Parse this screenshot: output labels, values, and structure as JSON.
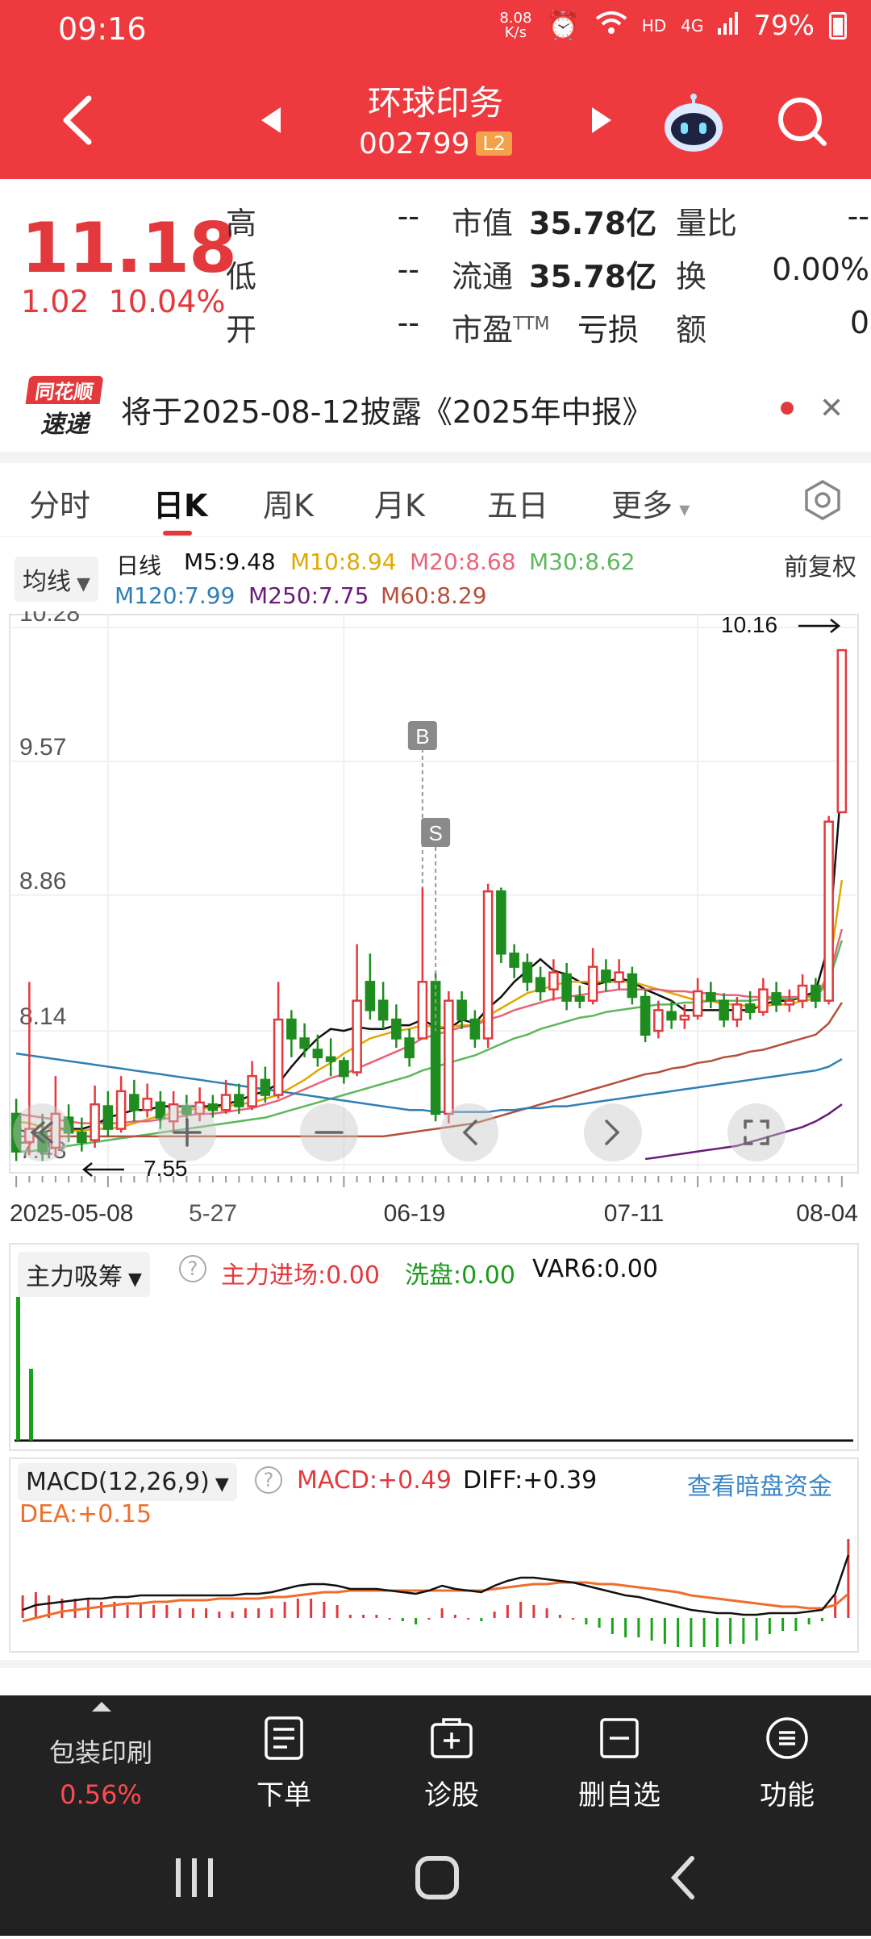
{
  "status": {
    "time": "09:16",
    "net_speed_value": "8.08",
    "net_speed_unit": "K/s",
    "hd": "HD",
    "signal": "4G",
    "battery": "79%"
  },
  "header": {
    "stock_name": "环球印务",
    "stock_code": "002799",
    "level_badge": "L2"
  },
  "quote": {
    "price": "11.18",
    "change": "1.02",
    "change_pct": "10.04%",
    "high_label": "高",
    "high": "--",
    "low_label": "低",
    "low": "--",
    "open_label": "开",
    "open": "--",
    "mktcap_label": "市值",
    "mktcap": "35.78亿",
    "float_label": "流通",
    "float": "35.78亿",
    "pe_label": "市盈",
    "pe_sup": "TTM",
    "pe": "亏损",
    "vol_ratio_label": "量比",
    "vol_ratio": "--",
    "turnover_label": "换",
    "turnover": "0.00%",
    "amount_label": "额",
    "amount": "0"
  },
  "news": {
    "logo_line1": "同花顺",
    "logo_line2": "速递",
    "text": "将于2025-08-12披露《2025年中报》"
  },
  "tabs": [
    "分时",
    "日K",
    "周K",
    "月K",
    "五日",
    "更多"
  ],
  "ma_legend": {
    "selector": "均线",
    "period": "日线",
    "adjust": "前复权",
    "items": [
      {
        "label": "M5:9.48",
        "color": "#111111"
      },
      {
        "label": "M10:8.94",
        "color": "#e0a800"
      },
      {
        "label": "M20:8.68",
        "color": "#e8647a"
      },
      {
        "label": "M30:8.62",
        "color": "#5cb85c"
      },
      {
        "label": "M120:7.99",
        "color": "#2f7fb5"
      },
      {
        "label": "M250:7.75",
        "color": "#6a1b7a"
      },
      {
        "label": "M60:8.29",
        "color": "#b5503a"
      }
    ]
  },
  "chart_data": {
    "type": "candlestick",
    "y_ticks": [
      "10.28",
      "9.57",
      "8.86",
      "8.14",
      "7.43"
    ],
    "ylim": [
      7.43,
      10.28
    ],
    "max_label": "10.16",
    "min_label": "7.55",
    "x_labels": [
      "2025-05-08",
      "5-27",
      "06-19",
      "07-11",
      "08-04"
    ],
    "markers": [
      {
        "label": "B"
      },
      {
        "label": "S"
      }
    ],
    "candles": [
      [
        7.7,
        7.5,
        7.78,
        7.45
      ],
      [
        7.55,
        7.62,
        8.4,
        7.48
      ],
      [
        7.6,
        7.5,
        7.7,
        7.45
      ],
      [
        7.52,
        7.7,
        7.9,
        7.48
      ],
      [
        7.68,
        7.6,
        7.75,
        7.55
      ],
      [
        7.6,
        7.55,
        7.68,
        7.5
      ],
      [
        7.56,
        7.75,
        7.85,
        7.52
      ],
      [
        7.74,
        7.62,
        7.82,
        7.58
      ],
      [
        7.62,
        7.82,
        7.9,
        7.6
      ],
      [
        7.8,
        7.72,
        7.88,
        7.66
      ],
      [
        7.72,
        7.78,
        7.86,
        7.68
      ],
      [
        7.76,
        7.68,
        7.82,
        7.62
      ],
      [
        7.66,
        7.75,
        7.82,
        7.6
      ],
      [
        7.74,
        7.7,
        7.8,
        7.65
      ],
      [
        7.7,
        7.76,
        7.84,
        7.66
      ],
      [
        7.75,
        7.72,
        7.8,
        7.68
      ],
      [
        7.72,
        7.8,
        7.88,
        7.7
      ],
      [
        7.8,
        7.74,
        7.86,
        7.7
      ],
      [
        7.74,
        7.9,
        7.98,
        7.72
      ],
      [
        7.88,
        7.8,
        7.95,
        7.76
      ],
      [
        7.8,
        8.2,
        8.4,
        7.78
      ],
      [
        8.2,
        8.1,
        8.25,
        8.0
      ],
      [
        8.1,
        8.05,
        8.18,
        8.0
      ],
      [
        8.04,
        8.0,
        8.12,
        7.95
      ],
      [
        8.0,
        7.98,
        8.1,
        7.9
      ],
      [
        7.98,
        7.9,
        8.0,
        7.86
      ],
      [
        7.92,
        8.3,
        8.6,
        7.9
      ],
      [
        8.4,
        8.25,
        8.55,
        8.2
      ],
      [
        8.3,
        8.2,
        8.4,
        8.15
      ],
      [
        8.2,
        8.1,
        8.28,
        8.05
      ],
      [
        8.1,
        8.0,
        8.15,
        7.95
      ],
      [
        8.1,
        8.4,
        8.9,
        8.1
      ],
      [
        8.4,
        7.7,
        8.45,
        7.66
      ],
      [
        7.7,
        8.3,
        8.35,
        7.65
      ],
      [
        8.3,
        8.2,
        8.35,
        8.15
      ],
      [
        8.2,
        8.1,
        8.25,
        8.05
      ],
      [
        8.1,
        8.88,
        8.92,
        8.05
      ],
      [
        8.88,
        8.55,
        8.9,
        8.5
      ],
      [
        8.55,
        8.48,
        8.6,
        8.42
      ],
      [
        8.5,
        8.4,
        8.55,
        8.35
      ],
      [
        8.42,
        8.35,
        8.48,
        8.3
      ],
      [
        8.36,
        8.45,
        8.52,
        8.3
      ],
      [
        8.44,
        8.3,
        8.5,
        8.25
      ],
      [
        8.32,
        8.3,
        8.38,
        8.26
      ],
      [
        8.3,
        8.48,
        8.58,
        8.28
      ],
      [
        8.46,
        8.4,
        8.52,
        8.35
      ],
      [
        8.4,
        8.45,
        8.52,
        8.36
      ],
      [
        8.44,
        8.32,
        8.48,
        8.28
      ],
      [
        8.32,
        8.12,
        8.36,
        8.08
      ],
      [
        8.14,
        8.25,
        8.3,
        8.1
      ],
      [
        8.24,
        8.2,
        8.3,
        8.15
      ],
      [
        8.2,
        8.22,
        8.28,
        8.15
      ],
      [
        8.22,
        8.35,
        8.42,
        8.2
      ],
      [
        8.34,
        8.3,
        8.4,
        8.26
      ],
      [
        8.3,
        8.2,
        8.34,
        8.16
      ],
      [
        8.2,
        8.28,
        8.32,
        8.16
      ],
      [
        8.28,
        8.24,
        8.35,
        8.2
      ],
      [
        8.24,
        8.36,
        8.42,
        8.22
      ],
      [
        8.34,
        8.28,
        8.4,
        8.24
      ],
      [
        8.28,
        8.3,
        8.36,
        8.24
      ],
      [
        8.3,
        8.38,
        8.44,
        8.26
      ],
      [
        8.38,
        8.3,
        8.42,
        8.26
      ],
      [
        8.3,
        9.25,
        9.28,
        8.28
      ],
      [
        9.3,
        10.16,
        10.16,
        9.3
      ]
    ],
    "ma_series": [
      {
        "name": "M5",
        "color": "#111111",
        "values": [
          7.62,
          7.6,
          7.6,
          7.62,
          7.62,
          7.62,
          7.64,
          7.68,
          7.7,
          7.72,
          7.72,
          7.74,
          7.74,
          7.74,
          7.74,
          7.74,
          7.75,
          7.77,
          7.8,
          7.82,
          7.86,
          7.95,
          8.03,
          8.1,
          8.15,
          8.14,
          8.16,
          8.15,
          8.15,
          8.17,
          8.17,
          8.2,
          8.16,
          8.15,
          8.2,
          8.18,
          8.26,
          8.32,
          8.4,
          8.46,
          8.52,
          8.46,
          8.44,
          8.4,
          8.38,
          8.4,
          8.42,
          8.4,
          8.36,
          8.33,
          8.3,
          8.25,
          8.25,
          8.25,
          8.25,
          8.25,
          8.25,
          8.28,
          8.3,
          8.3,
          8.32,
          8.35,
          8.6,
          9.48
        ]
      },
      {
        "name": "M10",
        "color": "#e0a800",
        "values": [
          7.66,
          7.65,
          7.63,
          7.62,
          7.61,
          7.61,
          7.62,
          7.62,
          7.63,
          7.65,
          7.67,
          7.69,
          7.7,
          7.72,
          7.73,
          7.73,
          7.74,
          7.75,
          7.76,
          7.78,
          7.8,
          7.84,
          7.88,
          7.93,
          7.97,
          8.02,
          8.06,
          8.1,
          8.12,
          8.14,
          8.15,
          8.17,
          8.16,
          8.16,
          8.17,
          8.17,
          8.22,
          8.26,
          8.3,
          8.34,
          8.36,
          8.38,
          8.4,
          8.4,
          8.4,
          8.4,
          8.4,
          8.4,
          8.38,
          8.36,
          8.34,
          8.32,
          8.3,
          8.3,
          8.28,
          8.28,
          8.27,
          8.27,
          8.28,
          8.28,
          8.3,
          8.31,
          8.45,
          8.94
        ]
      },
      {
        "name": "M20",
        "color": "#e8647a",
        "values": [
          7.7,
          7.69,
          7.68,
          7.67,
          7.66,
          7.65,
          7.65,
          7.65,
          7.65,
          7.66,
          7.66,
          7.67,
          7.68,
          7.69,
          7.7,
          7.7,
          7.71,
          7.72,
          7.73,
          7.75,
          7.77,
          7.8,
          7.83,
          7.86,
          7.89,
          7.91,
          7.94,
          7.97,
          8.0,
          8.03,
          8.06,
          8.1,
          8.12,
          8.14,
          8.16,
          8.17,
          8.2,
          8.22,
          8.25,
          8.27,
          8.29,
          8.31,
          8.32,
          8.33,
          8.34,
          8.35,
          8.36,
          8.36,
          8.36,
          8.36,
          8.35,
          8.35,
          8.34,
          8.34,
          8.33,
          8.33,
          8.32,
          8.32,
          8.32,
          8.32,
          8.32,
          8.33,
          8.42,
          8.68
        ]
      },
      {
        "name": "M30",
        "color": "#5cb85c",
        "values": [
          7.5,
          7.5,
          7.51,
          7.52,
          7.53,
          7.54,
          7.55,
          7.56,
          7.57,
          7.58,
          7.59,
          7.6,
          7.61,
          7.62,
          7.63,
          7.64,
          7.65,
          7.66,
          7.67,
          7.68,
          7.7,
          7.72,
          7.74,
          7.76,
          7.78,
          7.8,
          7.82,
          7.84,
          7.86,
          7.88,
          7.9,
          7.93,
          7.95,
          7.97,
          7.99,
          8.01,
          8.04,
          8.07,
          8.1,
          8.12,
          8.15,
          8.17,
          8.19,
          8.21,
          8.22,
          8.24,
          8.25,
          8.26,
          8.27,
          8.28,
          8.28,
          8.29,
          8.29,
          8.3,
          8.3,
          8.3,
          8.3,
          8.31,
          8.31,
          8.31,
          8.32,
          8.32,
          8.4,
          8.62
        ]
      },
      {
        "name": "M60",
        "color": "#b5503a",
        "values": [
          7.58,
          7.58,
          7.58,
          7.58,
          7.58,
          7.58,
          7.58,
          7.58,
          7.58,
          7.58,
          7.58,
          7.58,
          7.58,
          7.58,
          7.58,
          7.58,
          7.58,
          7.58,
          7.58,
          7.58,
          7.58,
          7.58,
          7.58,
          7.58,
          7.58,
          7.58,
          7.58,
          7.58,
          7.58,
          7.59,
          7.6,
          7.61,
          7.62,
          7.63,
          7.64,
          7.65,
          7.67,
          7.69,
          7.71,
          7.73,
          7.75,
          7.77,
          7.79,
          7.81,
          7.83,
          7.85,
          7.87,
          7.89,
          7.91,
          7.92,
          7.94,
          7.95,
          7.97,
          7.98,
          8.0,
          8.01,
          8.03,
          8.04,
          8.06,
          8.08,
          8.1,
          8.12,
          8.18,
          8.29
        ]
      },
      {
        "name": "M120",
        "color": "#2f7fb5",
        "values": [
          8.02,
          8.01,
          8.0,
          7.99,
          7.98,
          7.97,
          7.96,
          7.95,
          7.94,
          7.93,
          7.92,
          7.91,
          7.9,
          7.89,
          7.88,
          7.87,
          7.86,
          7.85,
          7.84,
          7.83,
          7.82,
          7.81,
          7.8,
          7.79,
          7.78,
          7.77,
          7.76,
          7.75,
          7.74,
          7.73,
          7.72,
          7.72,
          7.71,
          7.71,
          7.71,
          7.71,
          7.71,
          7.72,
          7.72,
          7.73,
          7.73,
          7.74,
          7.74,
          7.75,
          7.76,
          7.77,
          7.78,
          7.79,
          7.8,
          7.81,
          7.82,
          7.83,
          7.84,
          7.85,
          7.86,
          7.87,
          7.88,
          7.89,
          7.9,
          7.91,
          7.92,
          7.93,
          7.95,
          7.99
        ]
      },
      {
        "name": "M250",
        "color": "#6a1b7a",
        "values": [
          null,
          null,
          null,
          null,
          null,
          null,
          null,
          null,
          null,
          null,
          null,
          null,
          null,
          null,
          null,
          null,
          null,
          null,
          null,
          null,
          null,
          null,
          null,
          null,
          null,
          null,
          null,
          null,
          null,
          null,
          null,
          null,
          null,
          null,
          null,
          null,
          null,
          null,
          null,
          null,
          null,
          null,
          null,
          null,
          null,
          null,
          null,
          null,
          7.46,
          7.47,
          7.48,
          7.49,
          7.5,
          7.51,
          7.52,
          7.53,
          7.55,
          7.57,
          7.59,
          7.61,
          7.63,
          7.66,
          7.7,
          7.75
        ]
      }
    ]
  },
  "nav_controls": [
    "rewind",
    "zoom-in",
    "zoom-out",
    "prev",
    "next",
    "fullscreen"
  ],
  "sub1": {
    "selector": "主力吸筹",
    "item1": "主力进场:0.00",
    "item2": "洗盘:0.00",
    "item3": "VAR6:0.00",
    "bars": [
      1.0,
      0.5
    ]
  },
  "sub2": {
    "selector": "MACD(12,26,9)",
    "macd": "MACD:+0.49",
    "diff": "DIFF:+0.39",
    "dea": "DEA:+0.15",
    "link": "查看暗盘资金",
    "diff_values": [
      0.05,
      0.08,
      0.09,
      0.1,
      0.11,
      0.12,
      0.12,
      0.13,
      0.13,
      0.14,
      0.14,
      0.14,
      0.14,
      0.14,
      0.14,
      0.14,
      0.14,
      0.15,
      0.15,
      0.16,
      0.18,
      0.2,
      0.21,
      0.21,
      0.2,
      0.18,
      0.18,
      0.18,
      0.17,
      0.16,
      0.15,
      0.17,
      0.2,
      0.18,
      0.17,
      0.16,
      0.2,
      0.23,
      0.25,
      0.25,
      0.24,
      0.23,
      0.22,
      0.2,
      0.18,
      0.16,
      0.14,
      0.13,
      0.11,
      0.09,
      0.07,
      0.05,
      0.04,
      0.03,
      0.03,
      0.02,
      0.02,
      0.03,
      0.03,
      0.03,
      0.04,
      0.05,
      0.15,
      0.39
    ],
    "dea_values": [
      -0.02,
      0.0,
      0.02,
      0.04,
      0.05,
      0.06,
      0.07,
      0.08,
      0.09,
      0.09,
      0.1,
      0.1,
      0.11,
      0.11,
      0.11,
      0.12,
      0.12,
      0.12,
      0.12,
      0.13,
      0.13,
      0.14,
      0.15,
      0.16,
      0.16,
      0.17,
      0.17,
      0.17,
      0.17,
      0.17,
      0.17,
      0.17,
      0.17,
      0.17,
      0.17,
      0.17,
      0.18,
      0.19,
      0.2,
      0.21,
      0.21,
      0.22,
      0.22,
      0.22,
      0.21,
      0.21,
      0.2,
      0.19,
      0.18,
      0.17,
      0.16,
      0.14,
      0.13,
      0.12,
      0.11,
      0.1,
      0.09,
      0.08,
      0.07,
      0.07,
      0.06,
      0.06,
      0.08,
      0.15
    ],
    "macd_bars": [
      0.14,
      0.16,
      0.14,
      0.12,
      0.12,
      0.12,
      0.1,
      0.1,
      0.08,
      0.09,
      0.08,
      0.08,
      0.06,
      0.06,
      0.06,
      0.04,
      0.04,
      0.06,
      0.06,
      0.06,
      0.1,
      0.12,
      0.12,
      0.1,
      0.08,
      0.02,
      0.02,
      0.02,
      0.0,
      -0.02,
      -0.04,
      0.0,
      0.06,
      0.02,
      0.0,
      -0.02,
      0.04,
      0.08,
      0.1,
      0.08,
      0.06,
      0.02,
      0.0,
      -0.04,
      -0.06,
      -0.1,
      -0.12,
      -0.12,
      -0.14,
      -0.16,
      -0.18,
      -0.18,
      -0.18,
      -0.18,
      -0.16,
      -0.16,
      -0.14,
      -0.1,
      -0.08,
      -0.08,
      -0.04,
      -0.02,
      0.14,
      0.49
    ]
  },
  "toolbar": {
    "sector_name": "包装印刷",
    "sector_pct": "0.56%",
    "order": "下单",
    "diagnose": "诊股",
    "remove_watch": "删自选",
    "functions": "功能"
  }
}
